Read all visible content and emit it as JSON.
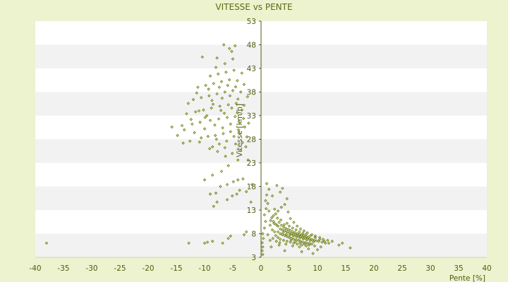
{
  "chart_data": {
    "type": "scatter",
    "title": "VITESSE vs PENTE",
    "xlabel": "Pente [%]",
    "ylabel": "Vitesse [km/h]",
    "xlim": [
      -40,
      40
    ],
    "ylim": [
      3,
      53
    ],
    "xticks": [
      "-40",
      "-35",
      "-30",
      "-25",
      "-20",
      "-15",
      "-10",
      "-5",
      "0",
      "5",
      "10",
      "15",
      "20",
      "25",
      "30",
      "35",
      "40"
    ],
    "yticks": [
      "3",
      "8",
      "13",
      "18",
      "23",
      "28",
      "33",
      "38",
      "43",
      "48",
      "53"
    ],
    "grid": "horizontal alternating bands",
    "colors": {
      "background": "#edf2cf",
      "band_light": "#ffffff",
      "band_dark": "#f2f2f2",
      "marker": "#6f7f12",
      "axis": "#4e5c12"
    },
    "points": [
      [
        -38.0,
        6.0
      ],
      [
        -12.8,
        6.0
      ],
      [
        -10.0,
        6.0
      ],
      [
        -9.5,
        6.2
      ],
      [
        -8.6,
        6.4
      ],
      [
        -6.8,
        6.0
      ],
      [
        -5.8,
        7.0
      ],
      [
        -5.4,
        7.5
      ],
      [
        -3.0,
        7.8
      ],
      [
        -2.6,
        8.4
      ],
      [
        -8.4,
        13.8
      ],
      [
        -7.8,
        14.7
      ],
      [
        -9.0,
        16.4
      ],
      [
        -8.0,
        16.6
      ],
      [
        -6.0,
        15.2
      ],
      [
        -5.1,
        16.0
      ],
      [
        -4.3,
        16.4
      ],
      [
        -3.8,
        17.2
      ],
      [
        -2.6,
        16.9
      ],
      [
        -1.8,
        14.7
      ],
      [
        -7.2,
        18.0
      ],
      [
        -6.0,
        18.4
      ],
      [
        -4.9,
        19.0
      ],
      [
        -4.1,
        19.4
      ],
      [
        -3.2,
        19.6
      ],
      [
        -1.6,
        18.4
      ],
      [
        -10.0,
        19.4
      ],
      [
        -8.6,
        20.4
      ],
      [
        -7.0,
        21.2
      ],
      [
        -5.8,
        22.4
      ],
      [
        -4.1,
        23.6
      ],
      [
        -2.3,
        23.6
      ],
      [
        -6.3,
        24.4
      ],
      [
        -5.1,
        25.0
      ],
      [
        -3.6,
        25.6
      ],
      [
        -8.6,
        26.4
      ],
      [
        -7.4,
        27.0
      ],
      [
        -4.5,
        27.0
      ],
      [
        -2.7,
        26.4
      ],
      [
        -13.8,
        27.2
      ],
      [
        -12.6,
        27.6
      ],
      [
        -10.6,
        28.3
      ],
      [
        -9.4,
        28.6
      ],
      [
        -8.1,
        28.8
      ],
      [
        -6.7,
        29.2
      ],
      [
        -5.4,
        29.6
      ],
      [
        -4.0,
        30.0
      ],
      [
        -15.8,
        30.6
      ],
      [
        -14.0,
        30.9
      ],
      [
        -12.2,
        31.2
      ],
      [
        -10.8,
        31.6
      ],
      [
        -9.0,
        32.0
      ],
      [
        -7.5,
        32.3
      ],
      [
        -6.0,
        32.6
      ],
      [
        -4.6,
        32.8
      ],
      [
        -3.1,
        32.4
      ],
      [
        -2.2,
        31.4
      ],
      [
        -13.2,
        33.4
      ],
      [
        -11.6,
        33.8
      ],
      [
        -10.2,
        34.2
      ],
      [
        -8.8,
        34.6
      ],
      [
        -7.3,
        35.0
      ],
      [
        -5.8,
        35.3
      ],
      [
        -4.4,
        35.6
      ],
      [
        -3.0,
        35.2
      ],
      [
        -12.0,
        36.4
      ],
      [
        -10.6,
        36.8
      ],
      [
        -9.2,
        37.2
      ],
      [
        -7.8,
        37.6
      ],
      [
        -6.4,
        38.0
      ],
      [
        -5.0,
        38.3
      ],
      [
        -3.6,
        38.0
      ],
      [
        -2.4,
        37.0
      ],
      [
        -11.2,
        39.0
      ],
      [
        -9.8,
        39.4
      ],
      [
        -8.4,
        39.8
      ],
      [
        -7.0,
        40.2
      ],
      [
        -5.6,
        40.6
      ],
      [
        -4.2,
        40.4
      ],
      [
        -3.0,
        39.6
      ],
      [
        -9.0,
        41.4
      ],
      [
        -7.6,
        41.8
      ],
      [
        -6.2,
        42.2
      ],
      [
        -4.8,
        42.6
      ],
      [
        -3.4,
        42.0
      ],
      [
        -8.0,
        43.2
      ],
      [
        -6.4,
        44.0
      ],
      [
        -5.0,
        45.0
      ],
      [
        -10.4,
        45.4
      ],
      [
        -7.8,
        45.2
      ],
      [
        -5.2,
        46.6
      ],
      [
        -4.6,
        47.8
      ],
      [
        -6.6,
        48.0
      ],
      [
        -5.6,
        47.2
      ],
      [
        -11.0,
        34.0
      ],
      [
        -9.6,
        33.0
      ],
      [
        -8.2,
        31.0
      ],
      [
        -6.8,
        30.4
      ],
      [
        -5.4,
        31.2
      ],
      [
        -4.2,
        33.6
      ],
      [
        -3.4,
        34.2
      ],
      [
        -11.8,
        29.4
      ],
      [
        -10.0,
        30.2
      ],
      [
        -7.9,
        28.0
      ],
      [
        -6.1,
        27.6
      ],
      [
        -4.8,
        28.6
      ],
      [
        -3.8,
        29.2
      ],
      [
        -2.9,
        30.6
      ],
      [
        -2.5,
        28.5
      ],
      [
        -12.9,
        35.6
      ],
      [
        -11.4,
        37.8
      ],
      [
        -8.7,
        36.2
      ],
      [
        -6.9,
        36.7
      ],
      [
        -5.5,
        37.2
      ],
      [
        -4.1,
        36.5
      ],
      [
        -9.3,
        38.6
      ],
      [
        -7.4,
        39.0
      ],
      [
        -5.9,
        39.4
      ],
      [
        -4.5,
        39.1
      ],
      [
        -8.5,
        35.4
      ],
      [
        -7.1,
        34.1
      ],
      [
        -9.9,
        32.6
      ],
      [
        -6.5,
        33.5
      ],
      [
        -5.2,
        34.6
      ],
      [
        -3.9,
        31.7
      ],
      [
        -12.4,
        32.2
      ],
      [
        -13.6,
        30.0
      ],
      [
        -14.8,
        28.8
      ],
      [
        -10.9,
        27.4
      ],
      [
        -9.1,
        26.0
      ],
      [
        -7.7,
        25.4
      ],
      [
        -6.4,
        26.2
      ],
      [
        -3.3,
        27.3
      ],
      [
        0.3,
        3.6
      ],
      [
        0.2,
        4.4
      ],
      [
        0.3,
        5.2
      ],
      [
        0.2,
        6.1
      ],
      [
        0.4,
        7.0
      ],
      [
        0.3,
        8.0
      ],
      [
        0.6,
        9.2
      ],
      [
        0.8,
        10.6
      ],
      [
        0.6,
        12.0
      ],
      [
        0.9,
        13.3
      ],
      [
        1.2,
        14.4
      ],
      [
        0.8,
        15.0
      ],
      [
        1.4,
        12.8
      ],
      [
        1.9,
        11.4
      ],
      [
        2.2,
        10.6
      ],
      [
        2.6,
        10.0
      ],
      [
        3.0,
        9.6
      ],
      [
        3.4,
        9.0
      ],
      [
        3.8,
        8.8
      ],
      [
        4.2,
        8.6
      ],
      [
        4.6,
        8.4
      ],
      [
        5.0,
        8.2
      ],
      [
        5.4,
        8.0
      ],
      [
        5.8,
        7.8
      ],
      [
        6.2,
        7.6
      ],
      [
        6.6,
        7.5
      ],
      [
        7.0,
        7.4
      ],
      [
        7.4,
        7.2
      ],
      [
        7.8,
        7.1
      ],
      [
        8.2,
        7.0
      ],
      [
        8.6,
        6.9
      ],
      [
        9.0,
        6.8
      ],
      [
        9.4,
        6.6
      ],
      [
        9.8,
        6.5
      ],
      [
        10.2,
        6.4
      ],
      [
        10.8,
        6.2
      ],
      [
        11.4,
        6.0
      ],
      [
        12.0,
        6.0
      ],
      [
        13.8,
        5.6
      ],
      [
        15.8,
        5.0
      ],
      [
        2.8,
        9.8
      ],
      [
        3.2,
        10.4
      ],
      [
        3.6,
        9.8
      ],
      [
        4.0,
        9.4
      ],
      [
        4.4,
        9.1
      ],
      [
        4.8,
        8.9
      ],
      [
        5.2,
        8.7
      ],
      [
        5.6,
        8.4
      ],
      [
        6.0,
        8.2
      ],
      [
        6.4,
        8.0
      ],
      [
        6.8,
        7.9
      ],
      [
        7.2,
        7.7
      ],
      [
        7.6,
        7.6
      ],
      [
        8.0,
        7.4
      ],
      [
        8.4,
        7.3
      ],
      [
        3.0,
        8.4
      ],
      [
        3.4,
        8.0
      ],
      [
        3.8,
        7.8
      ],
      [
        4.2,
        7.6
      ],
      [
        4.6,
        7.4
      ],
      [
        5.0,
        7.2
      ],
      [
        5.4,
        7.0
      ],
      [
        5.8,
        6.8
      ],
      [
        6.2,
        6.7
      ],
      [
        6.6,
        6.6
      ],
      [
        7.0,
        6.4
      ],
      [
        7.4,
        6.2
      ],
      [
        7.8,
        6.1
      ],
      [
        8.2,
        6.0
      ],
      [
        8.6,
        5.9
      ],
      [
        9.0,
        5.8
      ],
      [
        2.0,
        8.8
      ],
      [
        2.4,
        8.4
      ],
      [
        2.6,
        7.6
      ],
      [
        3.0,
        7.2
      ],
      [
        3.4,
        6.8
      ],
      [
        4.0,
        6.6
      ],
      [
        4.6,
        6.4
      ],
      [
        5.2,
        6.2
      ],
      [
        5.8,
        6.0
      ],
      [
        6.4,
        5.8
      ],
      [
        7.2,
        5.6
      ],
      [
        8.0,
        5.4
      ],
      [
        2.6,
        12.2
      ],
      [
        3.0,
        12.8
      ],
      [
        3.6,
        13.6
      ],
      [
        4.2,
        14.2
      ],
      [
        4.6,
        15.4
      ],
      [
        3.4,
        16.8
      ],
      [
        2.8,
        18.2
      ],
      [
        3.8,
        17.6
      ],
      [
        1.0,
        18.6
      ],
      [
        1.4,
        17.4
      ],
      [
        1.0,
        16.2
      ],
      [
        2.0,
        16.0
      ],
      [
        2.4,
        13.2
      ],
      [
        4.8,
        12.6
      ],
      [
        5.2,
        11.2
      ],
      [
        5.8,
        10.4
      ],
      [
        6.4,
        9.6
      ],
      [
        7.0,
        9.0
      ],
      [
        7.6,
        8.6
      ],
      [
        8.2,
        8.2
      ],
      [
        9.0,
        7.8
      ],
      [
        9.6,
        7.5
      ],
      [
        10.4,
        7.2
      ],
      [
        11.0,
        6.8
      ],
      [
        11.8,
        6.6
      ],
      [
        12.6,
        6.4
      ],
      [
        14.4,
        6.0
      ],
      [
        3.2,
        5.6
      ],
      [
        4.4,
        5.8
      ],
      [
        5.6,
        5.4
      ],
      [
        6.8,
        5.2
      ],
      [
        8.4,
        4.8
      ],
      [
        10.0,
        4.6
      ],
      [
        4.2,
        4.4
      ],
      [
        7.2,
        4.2
      ],
      [
        9.2,
        3.8
      ],
      [
        1.8,
        5.2
      ],
      [
        1.6,
        6.6
      ],
      [
        1.2,
        7.8
      ],
      [
        1.6,
        9.8
      ],
      [
        2.2,
        11.8
      ],
      [
        4.6,
        10.2
      ],
      [
        5.0,
        9.6
      ],
      [
        5.6,
        9.2
      ],
      [
        6.2,
        8.8
      ],
      [
        6.8,
        8.4
      ],
      [
        7.4,
        8.1
      ],
      [
        8.0,
        7.9
      ],
      [
        8.8,
        7.6
      ],
      [
        9.6,
        7.2
      ],
      [
        10.4,
        6.8
      ],
      [
        11.2,
        6.4
      ],
      [
        3.9,
        8.2
      ],
      [
        4.5,
        7.9
      ],
      [
        5.1,
        7.7
      ],
      [
        5.7,
        7.5
      ],
      [
        6.3,
        7.3
      ],
      [
        6.9,
        7.1
      ],
      [
        7.5,
        6.9
      ],
      [
        8.1,
        6.7
      ],
      [
        8.7,
        6.5
      ],
      [
        9.3,
        6.3
      ],
      [
        4.1,
        9.9
      ],
      [
        3.5,
        10.9
      ],
      [
        2.9,
        11.3
      ],
      [
        2.3,
        10.2
      ],
      [
        1.7,
        10.8
      ],
      [
        5.3,
        6.6
      ],
      [
        6.1,
        6.3
      ],
      [
        6.9,
        6.0
      ],
      [
        7.7,
        5.8
      ],
      [
        8.5,
        5.6
      ],
      [
        9.5,
        5.4
      ],
      [
        10.6,
        5.2
      ],
      [
        2.1,
        7.0
      ],
      [
        2.7,
        6.4
      ],
      [
        3.3,
        6.1
      ]
    ]
  }
}
